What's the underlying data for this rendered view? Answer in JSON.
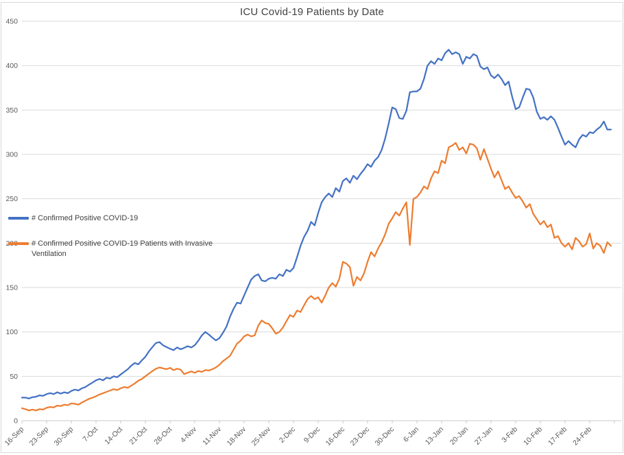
{
  "chart_data": {
    "type": "line",
    "title": "ICU Covid-19 Patients by Date",
    "xlabel": "",
    "ylabel": "",
    "ylim": [
      0,
      450
    ],
    "y_ticks": [
      0,
      50,
      100,
      150,
      200,
      250,
      300,
      350,
      400,
      450
    ],
    "grid": "horizontal",
    "legend_position": "inside-left",
    "x_start_date": "16-Sep",
    "x_end_date": "2-Mar",
    "x_frequency": "daily",
    "x_tick_interval_days": 7,
    "x_tick_labels": [
      "16-Sep",
      "23-Sep",
      "30-Sep",
      "7-Oct",
      "14-Oct",
      "21-Oct",
      "28-Oct",
      "4-Nov",
      "11-Nov",
      "18-Nov",
      "25-Nov",
      "2-Dec",
      "9-Dec",
      "16-Dec",
      "23-Dec",
      "30-Dec",
      "6-Jan",
      "13-Jan",
      "20-Jan",
      "27-Jan",
      "3-Feb",
      "10-Feb",
      "17-Feb",
      "24-Feb"
    ],
    "series": [
      {
        "name": "# Confirmed Positive COVID-19",
        "color": "#4472C4",
        "values": [
          26,
          26,
          25,
          26.5,
          27,
          28.5,
          28,
          30,
          31,
          30,
          32,
          30.5,
          32,
          31,
          33.5,
          35,
          34,
          36.5,
          38,
          40.5,
          43,
          45.5,
          47,
          45.5,
          48.5,
          47.5,
          50,
          49,
          52,
          55,
          58,
          62,
          65,
          63.5,
          68,
          72,
          78,
          83,
          87.5,
          88.5,
          85,
          83,
          81,
          79.5,
          82.5,
          80.5,
          82,
          84,
          82.5,
          85,
          90,
          96,
          100,
          97,
          93.5,
          90.5,
          93,
          99,
          106,
          117,
          126,
          133,
          132,
          141,
          150,
          159,
          163,
          165,
          158,
          157,
          160,
          161,
          160,
          165,
          163,
          170,
          168,
          172,
          184,
          197,
          207,
          214,
          224,
          220,
          234,
          246,
          252,
          256,
          252,
          262,
          258,
          270,
          273,
          268,
          276,
          272,
          278,
          283,
          289,
          286,
          293,
          297,
          305,
          318,
          335,
          353,
          351,
          341,
          340,
          349,
          370,
          371,
          371,
          374,
          385,
          400,
          405,
          402,
          408,
          406,
          414,
          418,
          413,
          415,
          413,
          402,
          410,
          408,
          413,
          411,
          399,
          396,
          398,
          389,
          386,
          390,
          385,
          378,
          382,
          365,
          351,
          353,
          364,
          374,
          373,
          364,
          348,
          340,
          342,
          339,
          343,
          339,
          330,
          320,
          311,
          315,
          311,
          308,
          317,
          322,
          320,
          325,
          324,
          328,
          331,
          337,
          328,
          328
        ]
      },
      {
        "name": "# Confirmed Positive COVID-19 Patients with Invasive Ventilation",
        "color": "#ED7D31",
        "values": [
          14,
          13,
          11.5,
          12.5,
          11.5,
          13,
          12.5,
          14.5,
          15.5,
          15,
          17,
          16.5,
          18,
          17.5,
          19.5,
          19,
          18,
          20.5,
          22.5,
          24.5,
          26,
          27.5,
          29.5,
          31,
          32.5,
          34,
          35.5,
          34.5,
          36.5,
          38,
          37,
          39.5,
          42,
          45,
          47,
          50,
          53,
          56,
          58.5,
          60,
          59,
          58,
          59.5,
          57,
          58.5,
          57.5,
          52.5,
          54,
          55.5,
          54,
          56,
          55,
          57,
          56.5,
          58,
          60,
          63,
          67,
          70,
          73,
          80,
          87,
          90,
          95,
          97,
          95,
          96,
          107,
          113,
          110,
          109,
          104,
          98,
          100,
          105,
          112,
          119,
          117,
          124,
          122.5,
          130,
          137,
          140.5,
          137,
          139,
          133,
          141,
          150,
          155,
          151,
          160,
          179,
          177,
          173,
          152,
          162,
          158,
          166,
          179,
          190,
          185,
          194,
          201,
          210,
          222,
          228,
          235,
          231,
          239,
          246,
          198,
          250,
          252,
          257,
          264,
          261,
          273,
          281,
          279,
          293,
          290,
          308,
          310,
          313,
          305,
          308,
          301,
          312,
          311,
          307,
          294,
          306,
          295,
          284,
          274,
          281,
          271,
          261,
          264,
          257,
          251,
          253,
          247,
          240,
          244,
          233,
          227,
          221,
          225,
          218,
          221,
          206,
          208,
          200,
          196,
          200,
          193,
          206,
          202,
          196,
          199,
          211,
          194,
          200,
          197,
          189,
          201,
          197
        ]
      }
    ]
  },
  "colors": {
    "background": "#FFFFFF",
    "gridline": "#D9D9D9",
    "axis_line": "#C8C8C8",
    "tick_label": "#595959",
    "title_text": "#404040",
    "frame_border": "#D9D9D9",
    "series_blue": "#4472C4",
    "series_orange": "#ED7D31"
  }
}
